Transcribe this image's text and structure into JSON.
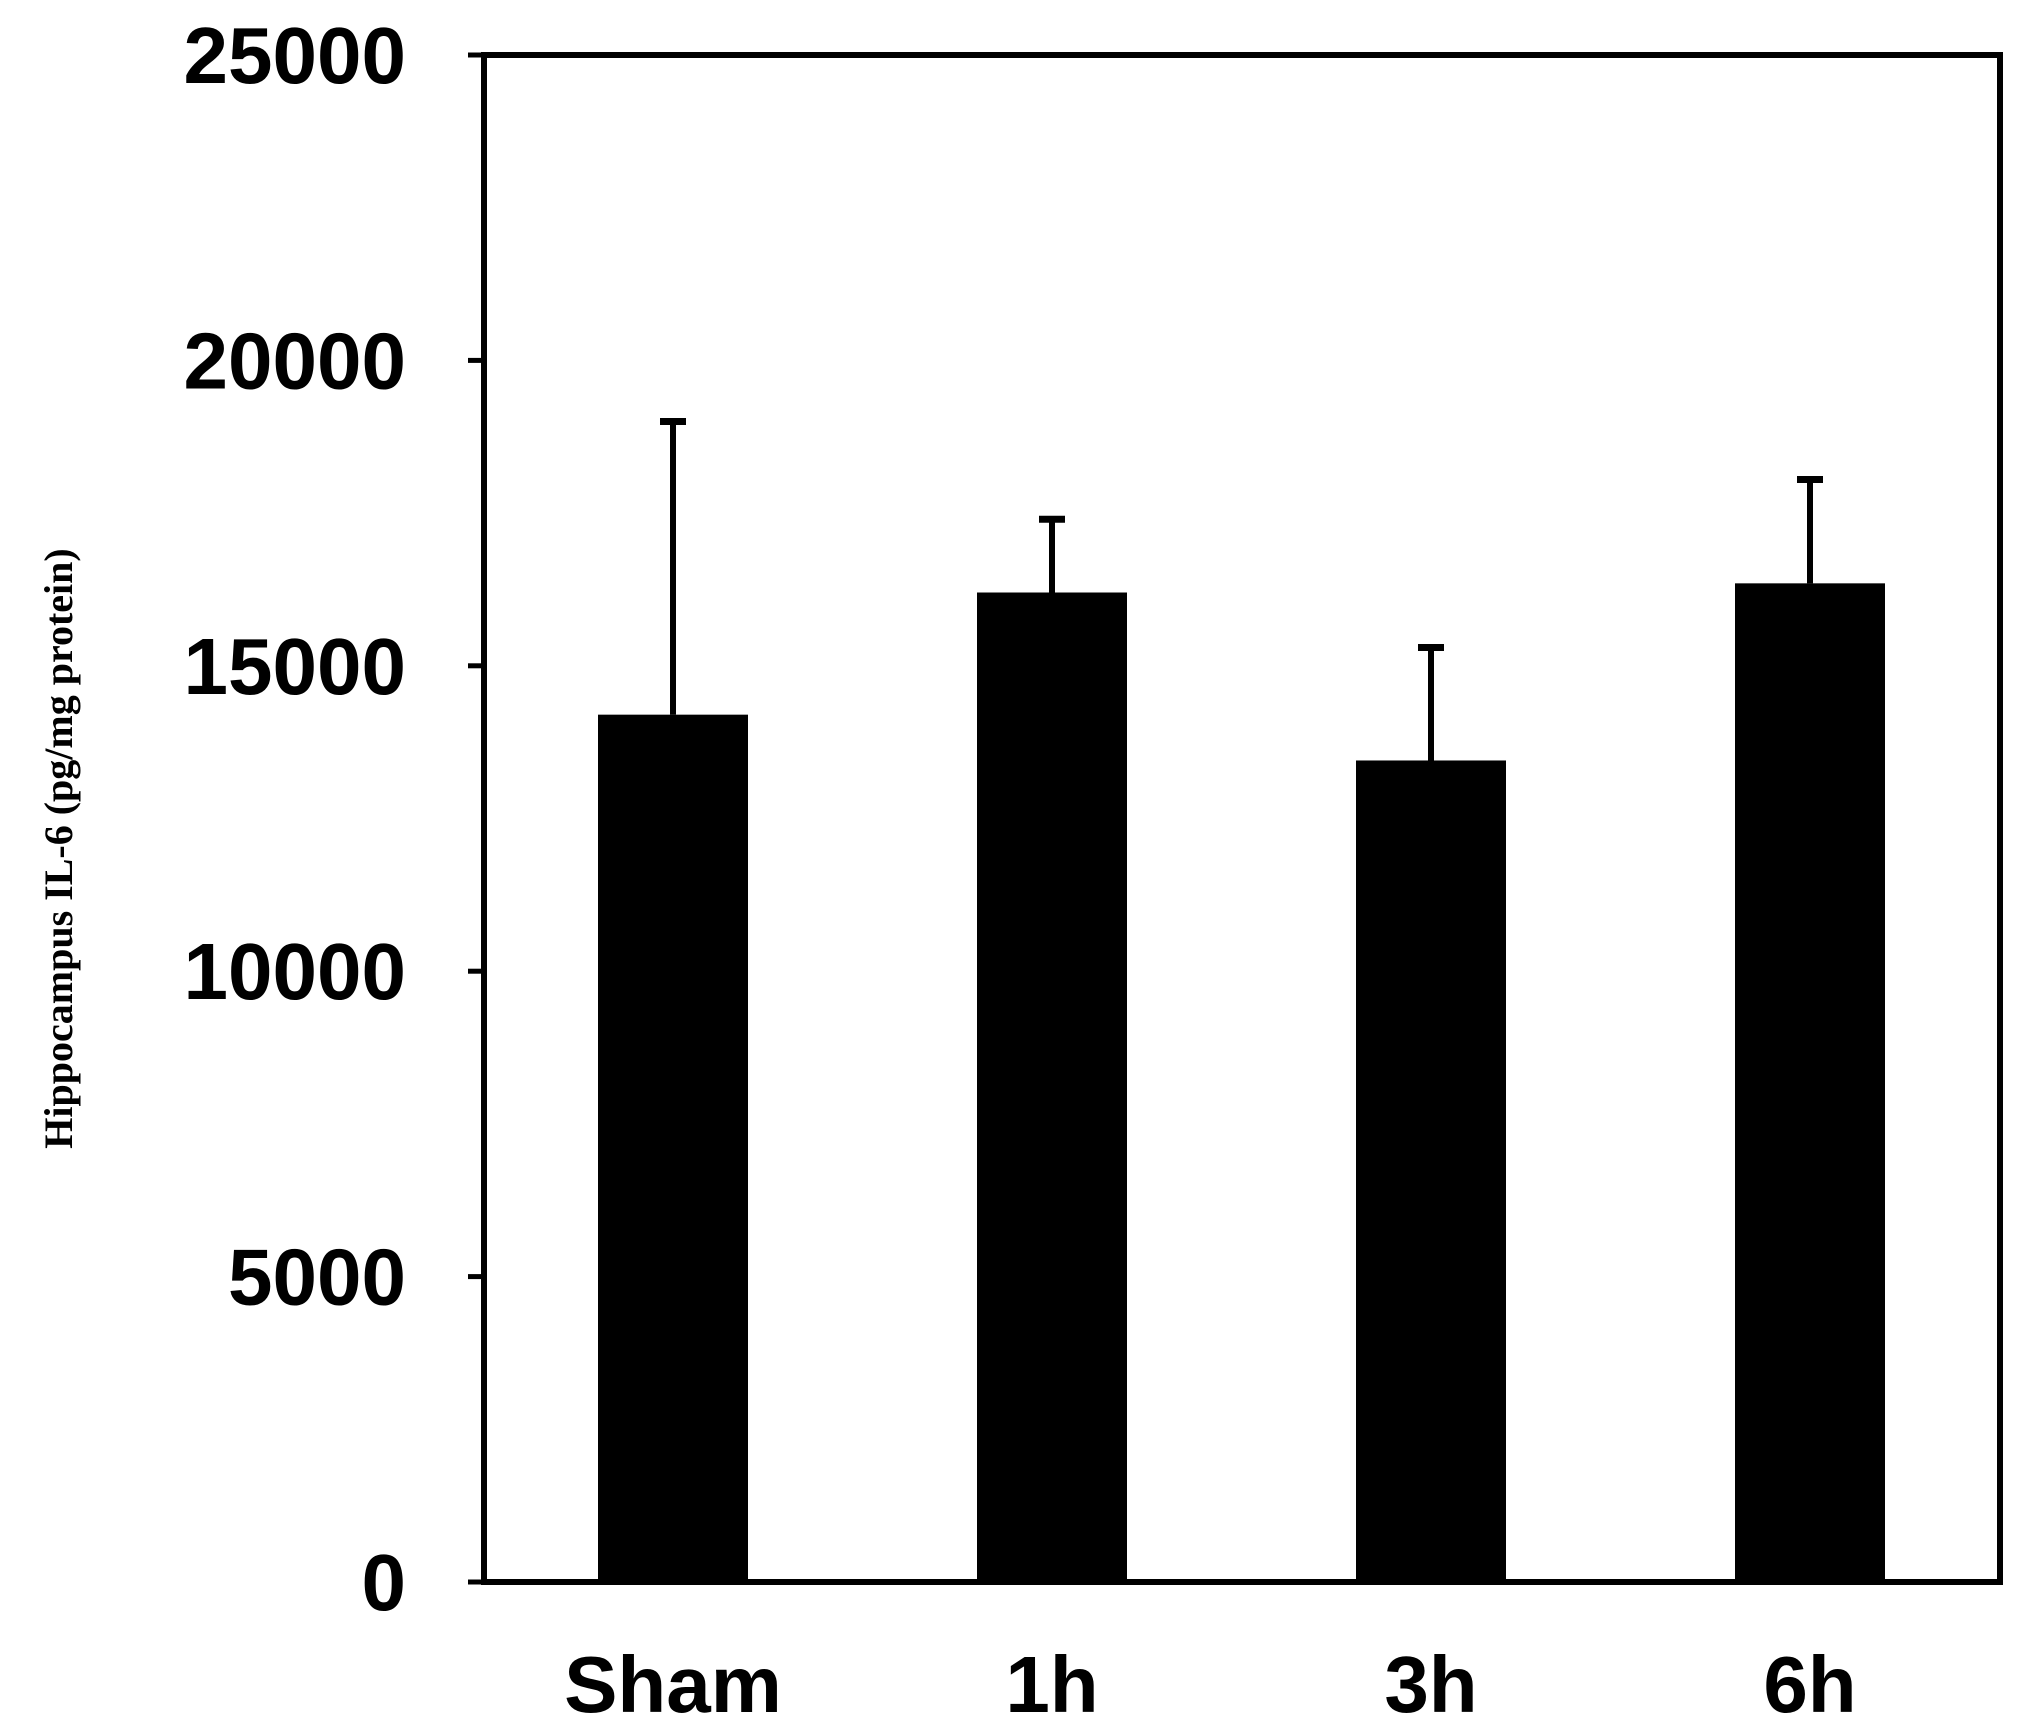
{
  "chart_data": {
    "type": "bar",
    "title": "",
    "xlabel": "",
    "ylabel": "Hippocampus IL-6 (pg/mg protein)",
    "categories": [
      "Sham",
      "1h",
      "3h",
      "6h"
    ],
    "series": [
      {
        "values": [
          14200,
          16200,
          13450,
          16350
        ],
        "error": [
          4800,
          1200,
          1850,
          1700
        ]
      }
    ],
    "ylim": [
      0,
      25000
    ],
    "yticks": [
      0,
      5000,
      10000,
      15000,
      20000,
      25000
    ],
    "ytick_labels": [
      "0",
      "5000",
      "10000",
      "15000",
      "20000",
      "25000"
    ],
    "grid": false,
    "legend": "none",
    "bar_color": "#000000",
    "axis_color": "#000000"
  }
}
